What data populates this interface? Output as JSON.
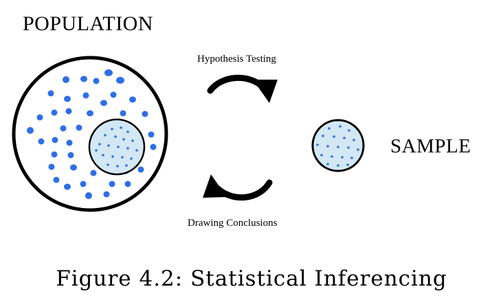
{
  "labels": {
    "population": "POPULATION",
    "sample": "SAMPLE",
    "hypothesis_testing": "Hypothesis Testing",
    "drawing_conclusions": "Drawing Conclusions"
  },
  "caption": "Figure 4.2: Statistical Inferencing",
  "colors": {
    "dot": "#2e6fe6",
    "sample_fill": "#d3e8f4",
    "outline": "#000000",
    "background": "#ffffff"
  },
  "icons": {
    "forward_arrow": "curved-arrow-right-icon",
    "back_arrow": "curved-arrow-left-icon"
  }
}
